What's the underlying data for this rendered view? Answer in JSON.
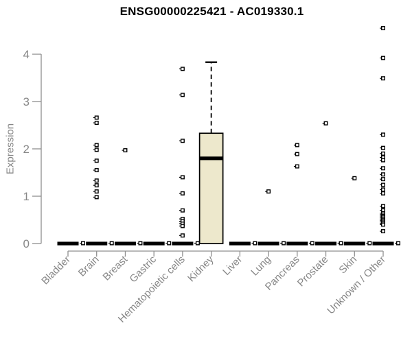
{
  "colors": {
    "box_fill": "#EDE8CC",
    "box_stroke": "#000000",
    "median": "#000000",
    "point": "#000000",
    "axis": "#8F8F8F",
    "axis_text": "#878787",
    "title_text": "#000000",
    "background": "#FFFFFF"
  },
  "chart_data": {
    "type": "boxplot",
    "title": "ENSG00000225421 - AC019330.1",
    "xlabel": "",
    "ylabel": "Expression",
    "ylim": [
      0,
      4.6
    ],
    "yticks": [
      0,
      1,
      2,
      3,
      4
    ],
    "grid": false,
    "legend": "none",
    "categories": [
      "Bladder",
      "Brain",
      "Breast",
      "Gastric",
      "Hematopoietic cells",
      "Kidney",
      "Liver",
      "Lung",
      "Pancreas",
      "Prostate",
      "Skin",
      "Unknown / Other"
    ],
    "series": [
      {
        "name": "Bladder",
        "q1": 0,
        "median": 0,
        "q3": 0,
        "whisker_low": 0,
        "whisker_high": 0,
        "outliers": []
      },
      {
        "name": "Brain",
        "q1": 0,
        "median": 0,
        "q3": 0,
        "whisker_low": 0,
        "whisker_high": 0,
        "outliers": [
          2.66,
          2.55,
          2.08,
          1.98,
          1.75,
          1.55,
          1.33,
          1.23,
          1.1,
          0.98
        ]
      },
      {
        "name": "Breast",
        "q1": 0,
        "median": 0,
        "q3": 0,
        "whisker_low": 0,
        "whisker_high": 0,
        "outliers": [
          1.97
        ]
      },
      {
        "name": "Gastric",
        "q1": 0,
        "median": 0,
        "q3": 0,
        "whisker_low": 0,
        "whisker_high": 0,
        "outliers": []
      },
      {
        "name": "Hematopoietic cells",
        "q1": 0,
        "median": 0,
        "q3": 0,
        "whisker_low": 0,
        "whisker_high": 0,
        "outliers": [
          3.69,
          3.14,
          2.17,
          1.4,
          1.06,
          0.7,
          0.52,
          0.47,
          0.42,
          0.37,
          0.17
        ]
      },
      {
        "name": "Kidney",
        "q1": 0,
        "median": 1.8,
        "q3": 2.33,
        "whisker_low": 0,
        "whisker_high": 3.83,
        "outliers": []
      },
      {
        "name": "Liver",
        "q1": 0,
        "median": 0,
        "q3": 0,
        "whisker_low": 0,
        "whisker_high": 0,
        "outliers": []
      },
      {
        "name": "Lung",
        "q1": 0,
        "median": 0,
        "q3": 0,
        "whisker_low": 0,
        "whisker_high": 0,
        "outliers": [
          1.1
        ]
      },
      {
        "name": "Pancreas",
        "q1": 0,
        "median": 0,
        "q3": 0,
        "whisker_low": 0,
        "whisker_high": 0,
        "outliers": [
          2.08,
          1.89,
          1.63
        ]
      },
      {
        "name": "Prostate",
        "q1": 0,
        "median": 0,
        "q3": 0,
        "whisker_low": 0,
        "whisker_high": 0,
        "outliers": [
          2.54
        ]
      },
      {
        "name": "Skin",
        "q1": 0,
        "median": 0,
        "q3": 0,
        "whisker_low": 0,
        "whisker_high": 0,
        "outliers": [
          1.38
        ]
      },
      {
        "name": "Unknown / Other",
        "q1": 0,
        "median": 0,
        "q3": 0,
        "whisker_low": 0,
        "whisker_high": 0,
        "outliers": [
          4.55,
          3.92,
          3.49,
          2.3,
          2.02,
          1.9,
          1.82,
          1.76,
          1.59,
          1.46,
          1.36,
          1.24,
          1.14,
          1.06,
          0.79,
          0.7,
          0.64,
          0.61,
          0.58,
          0.55,
          0.52,
          0.49,
          0.46,
          0.43,
          0.4,
          0.26
        ]
      }
    ]
  }
}
